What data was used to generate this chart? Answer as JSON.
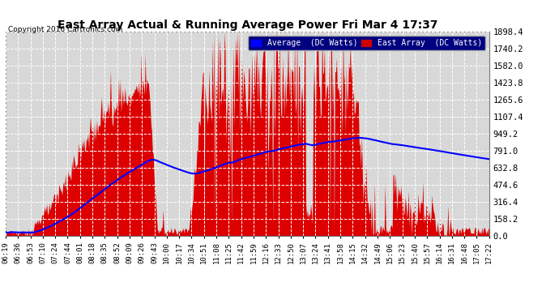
{
  "title": "East Array Actual & Running Average Power Fri Mar 4 17:37",
  "copyright": "Copyright 2016 Cartronics.com",
  "legend_labels": [
    "Average  (DC Watts)",
    "East Array  (DC Watts)"
  ],
  "legend_colors": [
    "#0000ff",
    "#cc0000"
  ],
  "bg_color": "#ffffff",
  "plot_bg_color": "#d8d8d8",
  "grid_color": "#ffffff",
  "bar_color": "#dd0000",
  "line_color": "#0000ff",
  "ylim": [
    0,
    1898.4
  ],
  "yticks": [
    0.0,
    158.2,
    316.4,
    474.6,
    632.8,
    791.0,
    949.2,
    1107.4,
    1265.6,
    1423.8,
    1582.0,
    1740.2,
    1898.4
  ],
  "xtick_labels": [
    "06:19",
    "06:36",
    "06:53",
    "07:10",
    "07:24",
    "07:44",
    "08:01",
    "08:18",
    "08:35",
    "08:52",
    "09:09",
    "09:26",
    "09:43",
    "10:00",
    "10:17",
    "10:34",
    "10:51",
    "11:08",
    "11:25",
    "11:42",
    "11:59",
    "12:16",
    "12:33",
    "12:50",
    "13:07",
    "13:24",
    "13:41",
    "13:58",
    "14:15",
    "14:32",
    "14:49",
    "15:06",
    "15:23",
    "15:40",
    "15:57",
    "16:14",
    "16:31",
    "16:48",
    "17:05",
    "17:22"
  ],
  "n_points": 600
}
